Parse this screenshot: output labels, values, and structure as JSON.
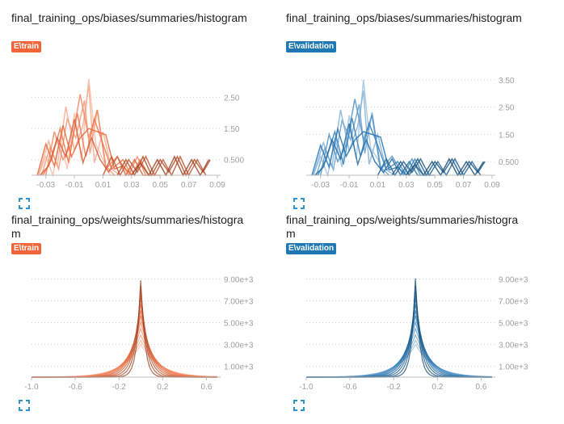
{
  "colors": {
    "train": "#f06d3f",
    "train_badge": "#f0663a",
    "validation": "#2b7bb8",
    "validation_badge": "#1f78b4",
    "axis_text": "#9e9e9e",
    "grid": "#d0d0d0",
    "icon": "#2a93c9"
  },
  "cards": [
    {
      "title": "final_training_ops/biases/summaries/histogram",
      "run": "E\\train",
      "run_key": "train",
      "expand_icon": "fullscreen-icon"
    },
    {
      "title": "final_training_ops/biases/summaries/histogram",
      "run": "E\\validation",
      "run_key": "validation",
      "expand_icon": "fullscreen-icon"
    },
    {
      "title": "final_training_ops/weights/summaries/histogram",
      "run": "E\\train",
      "run_key": "train",
      "expand_icon": "fullscreen-icon"
    },
    {
      "title": "final_training_ops/weights/summaries/histogram",
      "run": "E\\validation",
      "run_key": "validation",
      "expand_icon": "fullscreen-icon"
    }
  ],
  "chart_data": [
    {
      "type": "area",
      "subtype": "histogram-overlay",
      "title": "final_training_ops/biases/summaries/histogram",
      "series_label": "E\\train",
      "xlim": [
        -0.04,
        0.09
      ],
      "ylim": [
        0,
        3.5
      ],
      "x_ticks": [
        -0.03,
        -0.01,
        0.01,
        0.03,
        0.05,
        0.07,
        0.09
      ],
      "x_tick_labels": [
        "-0.03",
        "-0.01",
        "0.01",
        "0.03",
        "0.05",
        "0.07",
        "0.09"
      ],
      "y_ticks": [
        0.5,
        1.5,
        2.5
      ],
      "y_tick_labels": [
        "0.500",
        "1.50",
        "2.50"
      ],
      "grid": true,
      "lines": [
        {
          "x": [
            -0.035,
            -0.03,
            -0.025,
            -0.02,
            -0.015,
            -0.01,
            -0.005,
            0.0,
            0.005,
            0.01,
            0.015,
            0.02
          ],
          "y": [
            0,
            0.6,
            0,
            1.2,
            0.2,
            2.0,
            0.5,
            3.1,
            1.0,
            0.5,
            0,
            0
          ]
        },
        {
          "x": [
            -0.035,
            -0.028,
            -0.022,
            -0.016,
            -0.01,
            -0.004,
            0.0,
            0.004,
            0.01,
            0.016,
            0.022
          ],
          "y": [
            0,
            1.1,
            0.3,
            2.2,
            0.8,
            1.6,
            2.9,
            0.4,
            1.4,
            0.2,
            0
          ]
        },
        {
          "x": [
            -0.033,
            -0.027,
            -0.021,
            -0.015,
            -0.009,
            -0.003,
            0.001,
            0.006,
            0.012,
            0.018
          ],
          "y": [
            0,
            0.9,
            0.2,
            1.8,
            1.2,
            2.4,
            0.7,
            2.1,
            0.3,
            0
          ]
        },
        {
          "x": [
            -0.03,
            -0.024,
            -0.018,
            -0.012,
            -0.006,
            0.0,
            0.006,
            0.012,
            0.02,
            0.028,
            0.034,
            0.04
          ],
          "y": [
            0,
            1.4,
            0.5,
            1.0,
            2.6,
            1.2,
            2.1,
            0.2,
            0.6,
            0,
            0.6,
            0
          ]
        },
        {
          "x": [
            -0.032,
            -0.026,
            -0.02,
            -0.014,
            -0.008,
            -0.002,
            0.004,
            0.01,
            0.016,
            0.024,
            0.03,
            0.036,
            0.042,
            0.05
          ],
          "y": [
            0,
            0.5,
            1.5,
            0.4,
            2.0,
            0.6,
            1.8,
            1.0,
            0.2,
            0.5,
            0,
            0.5,
            0,
            0
          ]
        },
        {
          "x": [
            -0.036,
            -0.03,
            -0.024,
            -0.018,
            -0.012,
            -0.006,
            0.0,
            0.006,
            0.012,
            0.018,
            0.024,
            0.03
          ],
          "y": [
            0,
            1.0,
            0.3,
            1.6,
            0.6,
            1.2,
            1.5,
            1.4,
            1.3,
            0.2,
            0.3,
            0
          ]
        },
        {
          "x": [
            -0.034,
            -0.028,
            -0.022,
            -0.016,
            -0.01,
            -0.004,
            0.002,
            0.008,
            0.014,
            0.02,
            0.026,
            0.032,
            0.038,
            0.044
          ],
          "y": [
            0,
            0.3,
            1.2,
            0.6,
            1.8,
            0.4,
            1.2,
            0.5,
            0.1,
            0.6,
            0,
            0.5,
            0,
            0
          ]
        },
        {
          "x": [
            0.01,
            0.016,
            0.022,
            0.028,
            0.034,
            0.04,
            0.046,
            0.052,
            0.058,
            0.064,
            0.07,
            0.076,
            0.082
          ],
          "y": [
            0,
            0.6,
            0,
            0.5,
            0.1,
            0.6,
            0,
            0.5,
            0,
            0.6,
            0,
            0.5,
            0
          ]
        },
        {
          "x": [
            0.02,
            0.026,
            0.032,
            0.038,
            0.044,
            0.05,
            0.056,
            0.062,
            0.068,
            0.074,
            0.08,
            0.085
          ],
          "y": [
            0,
            0.5,
            0,
            0.6,
            0,
            0.5,
            0.1,
            0.6,
            0,
            0.5,
            0.1,
            0.5
          ]
        },
        {
          "x": [
            0.03,
            0.036,
            0.042,
            0.048,
            0.054,
            0.06,
            0.066,
            0.072,
            0.078,
            0.084
          ],
          "y": [
            0,
            0.4,
            0,
            0.5,
            0,
            0.6,
            0,
            0.5,
            0,
            0.5
          ]
        }
      ]
    },
    {
      "type": "area",
      "subtype": "histogram-overlay",
      "title": "final_training_ops/biases/summaries/histogram",
      "series_label": "E\\validation",
      "xlim": [
        -0.04,
        0.09
      ],
      "ylim": [
        0,
        4.0
      ],
      "x_ticks": [
        -0.03,
        -0.01,
        0.01,
        0.03,
        0.05,
        0.07,
        0.09
      ],
      "x_tick_labels": [
        "-0.03",
        "-0.01",
        "0.01",
        "0.03",
        "0.05",
        "0.07",
        "0.09"
      ],
      "y_ticks": [
        0.5,
        1.5,
        2.5,
        3.5
      ],
      "y_tick_labels": [
        "0.500",
        "1.50",
        "2.50",
        "3.50"
      ],
      "grid": true,
      "lines": [
        {
          "x": [
            -0.035,
            -0.03,
            -0.025,
            -0.02,
            -0.015,
            -0.01,
            -0.005,
            0.0,
            0.005,
            0.01,
            0.015,
            0.02
          ],
          "y": [
            0,
            0.7,
            0,
            1.4,
            0.3,
            2.2,
            0.6,
            3.5,
            1.0,
            0.6,
            0,
            0
          ]
        },
        {
          "x": [
            -0.035,
            -0.028,
            -0.022,
            -0.016,
            -0.01,
            -0.004,
            0.0,
            0.004,
            0.01,
            0.016,
            0.022
          ],
          "y": [
            0,
            1.2,
            0.3,
            2.4,
            0.9,
            1.8,
            3.1,
            0.4,
            1.5,
            0.2,
            0
          ]
        },
        {
          "x": [
            -0.033,
            -0.027,
            -0.021,
            -0.015,
            -0.009,
            -0.003,
            0.001,
            0.006,
            0.012,
            0.018
          ],
          "y": [
            0,
            1.0,
            0.2,
            2.0,
            1.3,
            2.6,
            0.8,
            2.3,
            0.3,
            0
          ]
        },
        {
          "x": [
            -0.03,
            -0.024,
            -0.018,
            -0.012,
            -0.006,
            0.0,
            0.006,
            0.012,
            0.02,
            0.028,
            0.034,
            0.04
          ],
          "y": [
            0,
            1.5,
            0.5,
            1.1,
            2.8,
            1.3,
            2.2,
            0.2,
            0.7,
            0,
            0.6,
            0
          ]
        },
        {
          "x": [
            -0.032,
            -0.026,
            -0.02,
            -0.014,
            -0.008,
            -0.002,
            0.004,
            0.01,
            0.016,
            0.024,
            0.03,
            0.036,
            0.042,
            0.05
          ],
          "y": [
            0,
            0.6,
            1.6,
            0.4,
            2.1,
            0.7,
            1.9,
            1.1,
            0.2,
            0.5,
            0,
            0.6,
            0,
            0
          ]
        },
        {
          "x": [
            -0.036,
            -0.03,
            -0.024,
            -0.018,
            -0.012,
            -0.006,
            0.0,
            0.006,
            0.012,
            0.018,
            0.024,
            0.03
          ],
          "y": [
            0,
            1.1,
            0.3,
            1.7,
            0.7,
            1.3,
            1.6,
            1.5,
            1.4,
            0.2,
            0.3,
            0
          ]
        },
        {
          "x": [
            -0.034,
            -0.028,
            -0.022,
            -0.016,
            -0.01,
            -0.004,
            0.002,
            0.008,
            0.014,
            0.02,
            0.026,
            0.032,
            0.038,
            0.044
          ],
          "y": [
            0,
            0.3,
            1.3,
            0.6,
            1.9,
            0.4,
            1.3,
            0.5,
            0.1,
            0.6,
            0,
            0.5,
            0,
            0
          ]
        },
        {
          "x": [
            0.01,
            0.016,
            0.022,
            0.028,
            0.034,
            0.04,
            0.046,
            0.052,
            0.058,
            0.064,
            0.07,
            0.076,
            0.082
          ],
          "y": [
            0,
            0.6,
            0,
            0.5,
            0.1,
            0.6,
            0,
            0.5,
            0,
            0.6,
            0,
            0.5,
            0
          ]
        },
        {
          "x": [
            0.02,
            0.026,
            0.032,
            0.038,
            0.044,
            0.05,
            0.056,
            0.062,
            0.068,
            0.074,
            0.08,
            0.085
          ],
          "y": [
            0,
            0.5,
            0,
            0.6,
            0,
            0.5,
            0.1,
            0.6,
            0,
            0.5,
            0.1,
            0.5
          ]
        },
        {
          "x": [
            0.03,
            0.036,
            0.042,
            0.048,
            0.054,
            0.06,
            0.066,
            0.072,
            0.078,
            0.084
          ],
          "y": [
            0,
            0.4,
            0,
            0.5,
            0,
            0.6,
            0,
            0.5,
            0,
            0.5
          ]
        }
      ]
    },
    {
      "type": "area",
      "subtype": "histogram-overlay",
      "title": "final_training_ops/weights/summaries/histogram",
      "series_label": "E\\train",
      "xlim": [
        -1.0,
        0.7
      ],
      "ylim": [
        0,
        10000
      ],
      "x_ticks": [
        -1.0,
        -0.6,
        -0.2,
        0.2,
        0.6
      ],
      "x_tick_labels": [
        "-1.0",
        "-0.6",
        "-0.2",
        "0.2",
        "0.6"
      ],
      "y_ticks": [
        1000,
        3000,
        5000,
        7000,
        9000
      ],
      "y_tick_labels": [
        "1.00e+3",
        "3.00e+3",
        "5.00e+3",
        "7.00e+3",
        "9.00e+3"
      ],
      "grid": true,
      "peaks": {
        "center": 0.0,
        "heights": [
          3000,
          3400,
          3900,
          4500,
          5100,
          5700,
          6200,
          6800,
          7400,
          8000,
          8600,
          9200
        ],
        "base_width": 0.035,
        "width_step": 0.012
      }
    },
    {
      "type": "area",
      "subtype": "histogram-overlay",
      "title": "final_training_ops/weights/summaries/histogram",
      "series_label": "E\\validation",
      "xlim": [
        -1.0,
        0.7
      ],
      "ylim": [
        0,
        10000
      ],
      "x_ticks": [
        -1.0,
        -0.6,
        -0.2,
        0.2,
        0.6
      ],
      "x_tick_labels": [
        "-1.0",
        "-0.6",
        "-0.2",
        "0.2",
        "0.6"
      ],
      "y_ticks": [
        1000,
        3000,
        5000,
        7000,
        9000
      ],
      "y_tick_labels": [
        "1.00e+3",
        "3.00e+3",
        "5.00e+3",
        "7.00e+3",
        "9.00e+3"
      ],
      "grid": true,
      "peaks": {
        "center": 0.0,
        "heights": [
          3000,
          3400,
          3900,
          4500,
          5100,
          5700,
          6200,
          6800,
          7400,
          8000,
          8600,
          9400
        ],
        "base_width": 0.035,
        "width_step": 0.012
      }
    }
  ]
}
